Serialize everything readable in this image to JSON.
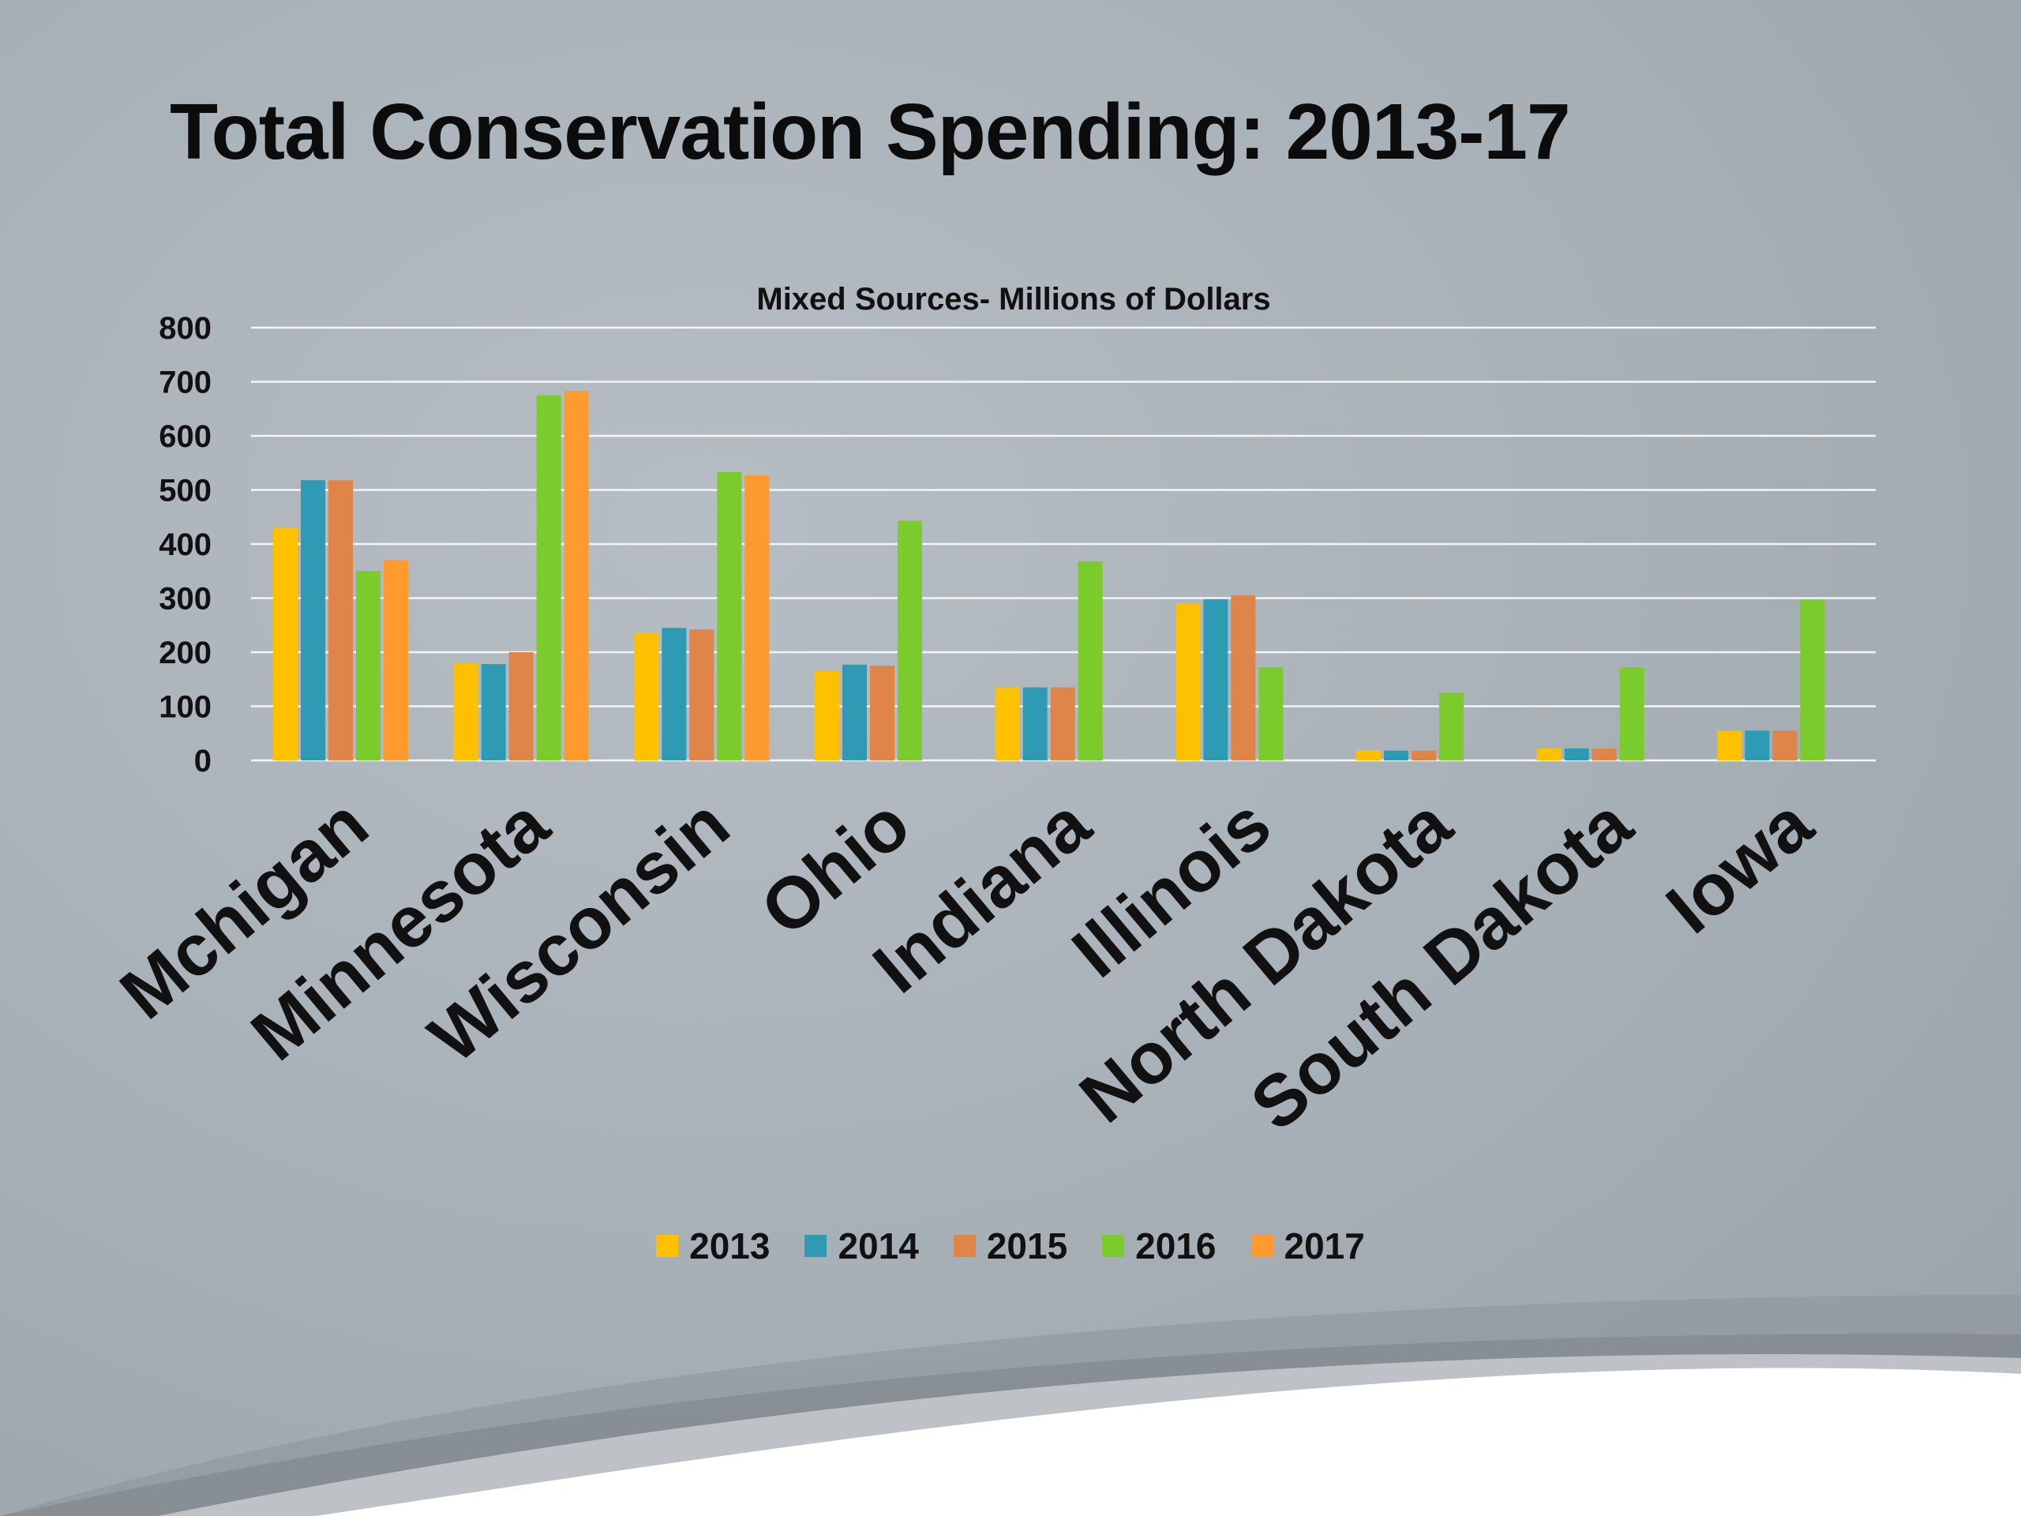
{
  "slide": {
    "title": "Total Conservation Spending: 2013-17"
  },
  "chart_data": {
    "type": "bar",
    "title": "Mixed Sources- Millions of Dollars",
    "xlabel": "",
    "ylabel": "",
    "ylim": [
      0,
      800
    ],
    "yticks": [
      0,
      100,
      200,
      300,
      400,
      500,
      600,
      700,
      800
    ],
    "grid": true,
    "legend_position": "bottom",
    "categories": [
      "Mchigan",
      "Minnesota",
      "Wisconsin",
      "Ohio",
      "Indiana",
      "Illinois",
      "North Dakota",
      "South Dakota",
      "Iowa"
    ],
    "series": [
      {
        "name": "2013",
        "color": "#FFC000",
        "values": [
          430,
          180,
          235,
          165,
          135,
          290,
          18,
          22,
          55
        ]
      },
      {
        "name": "2014",
        "color": "#2E9AB3",
        "values": [
          518,
          178,
          245,
          177,
          135,
          298,
          18,
          22,
          55
        ]
      },
      {
        "name": "2015",
        "color": "#E0854A",
        "values": [
          518,
          200,
          242,
          175,
          135,
          305,
          18,
          22,
          55
        ]
      },
      {
        "name": "2016",
        "color": "#7CCB2D",
        "values": [
          350,
          675,
          533,
          443,
          368,
          172,
          125,
          172,
          297
        ]
      },
      {
        "name": "2017",
        "color": "#FF9A2E",
        "values": [
          370,
          683,
          527,
          null,
          null,
          null,
          null,
          null,
          null
        ]
      }
    ]
  }
}
